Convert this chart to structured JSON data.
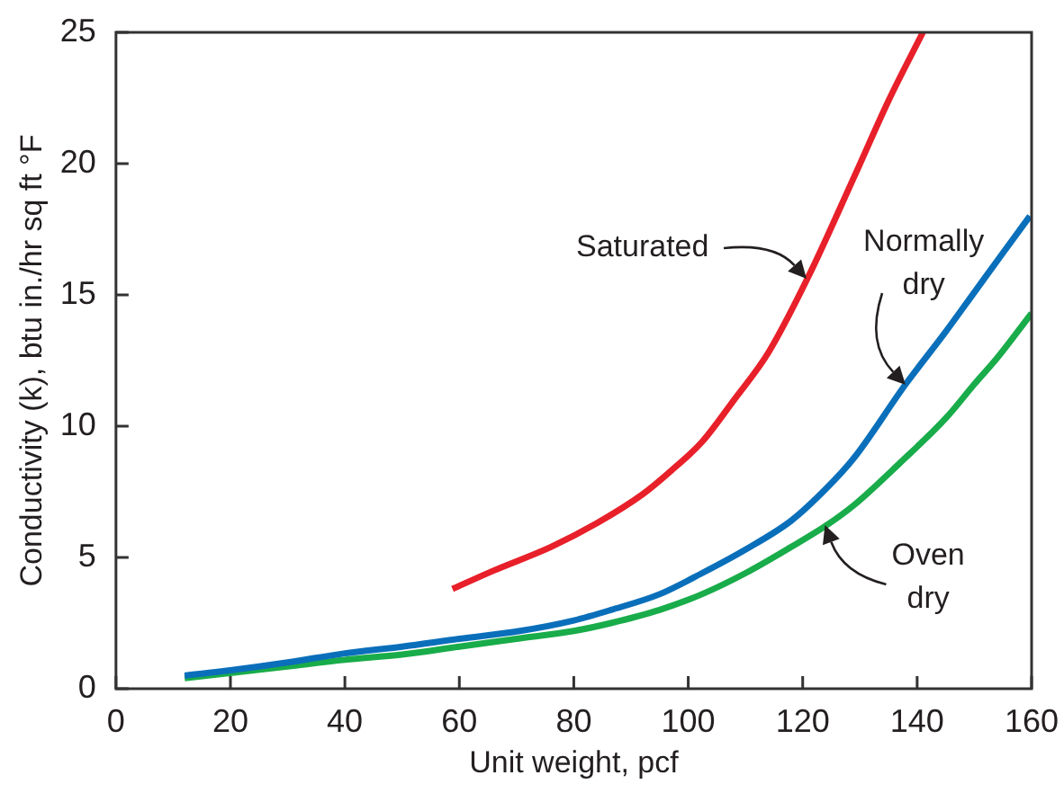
{
  "chart_data": {
    "type": "line",
    "xlabel": "Unit weight, pcf",
    "ylabel": "Conductivity (k), btu in./hr sq ft °F",
    "xlim": [
      0,
      160
    ],
    "xticks": [
      0,
      20,
      40,
      60,
      80,
      100,
      120,
      140,
      160
    ],
    "ylim": [
      0,
      25
    ],
    "yticks": [
      0,
      5,
      10,
      15,
      20,
      25
    ],
    "grid": false,
    "legend": false,
    "marker": "none",
    "line_style": "solid",
    "series": [
      {
        "color": "#e8202a",
        "x": [
          58.8,
          66,
          76,
          84,
          92,
          97,
          102.4,
          108,
          114,
          121,
          129,
          135,
          141
        ],
        "values": [
          3.8,
          4.5,
          5.4,
          6.3,
          7.4,
          8.3,
          9.4,
          11,
          12.8,
          15.7,
          19.5,
          22.4,
          25
        ]
      },
      {
        "color": "#0a6fba",
        "x": [
          12,
          20,
          30,
          39.8,
          50,
          60,
          70.6,
          80,
          86.5,
          95,
          102.4,
          110,
          118,
          124,
          129,
          138,
          145,
          150,
          155,
          159.7
        ],
        "values": [
          0.5,
          0.7,
          1,
          1.34,
          1.6,
          1.9,
          2.2,
          2.6,
          3,
          3.6,
          4.4,
          5.3,
          6.4,
          7.6,
          8.8,
          11.6,
          13.6,
          15.1,
          16.6,
          18
        ]
      },
      {
        "color": "#19ac4a",
        "x": [
          12,
          20,
          30,
          40,
          50,
          60,
          70,
          80,
          86.5,
          95,
          102.4,
          110,
          118,
          124,
          129,
          137,
          145,
          150,
          154,
          160
        ],
        "values": [
          0.4,
          0.6,
          0.85,
          1.1,
          1.3,
          1.6,
          1.9,
          2.2,
          2.5,
          3,
          3.6,
          4.4,
          5.4,
          6.2,
          7,
          8.6,
          10.3,
          11.6,
          12.6,
          14.3
        ]
      }
    ],
    "annotations": [
      "Saturated",
      {
        "text": "Normally\ndry",
        "x": 138,
        "y": 11.6
      },
      {
        "text": "Oven\ndry",
        "x": 124,
        "y": 6.2
      }
    ]
  }
}
